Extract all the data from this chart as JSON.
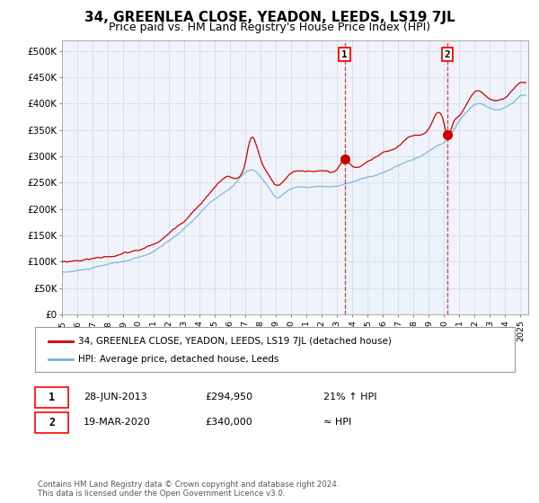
{
  "title": "34, GREENLEA CLOSE, YEADON, LEEDS, LS19 7JL",
  "subtitle": "Price paid vs. HM Land Registry's House Price Index (HPI)",
  "title_fontsize": 11,
  "subtitle_fontsize": 9,
  "background_color": "#ffffff",
  "plot_background": "#f0f4fa",
  "grid_color": "#d8dde8",
  "ylim": [
    0,
    520000
  ],
  "yticks": [
    0,
    50000,
    100000,
    150000,
    200000,
    250000,
    300000,
    350000,
    400000,
    450000,
    500000
  ],
  "ytick_labels": [
    "£0",
    "£50K",
    "£100K",
    "£150K",
    "£200K",
    "£250K",
    "£300K",
    "£350K",
    "£400K",
    "£450K",
    "£500K"
  ],
  "xlim_start": 1995.0,
  "xlim_end": 2025.5,
  "xticks": [
    1995,
    1996,
    1997,
    1998,
    1999,
    2000,
    2001,
    2002,
    2003,
    2004,
    2005,
    2006,
    2007,
    2008,
    2009,
    2010,
    2011,
    2012,
    2013,
    2014,
    2015,
    2016,
    2017,
    2018,
    2019,
    2020,
    2021,
    2022,
    2023,
    2024,
    2025
  ],
  "marker1_x": 2013.49,
  "marker1_y": 294950,
  "marker2_x": 2020.22,
  "marker2_y": 340000,
  "sale1_date": "28-JUN-2013",
  "sale1_price": "£294,950",
  "sale1_rel": "21% ↑ HPI",
  "sale2_date": "19-MAR-2020",
  "sale2_price": "£340,000",
  "sale2_rel": "≈ HPI",
  "legend_label1": "34, GREENLEA CLOSE, YEADON, LEEDS, LS19 7JL (detached house)",
  "legend_label2": "HPI: Average price, detached house, Leeds",
  "footer": "Contains HM Land Registry data © Crown copyright and database right 2024.\nThis data is licensed under the Open Government Licence v3.0.",
  "hpi_color": "#7ab0d4",
  "price_color": "#cc0000",
  "shade_color": "#daeaf6"
}
